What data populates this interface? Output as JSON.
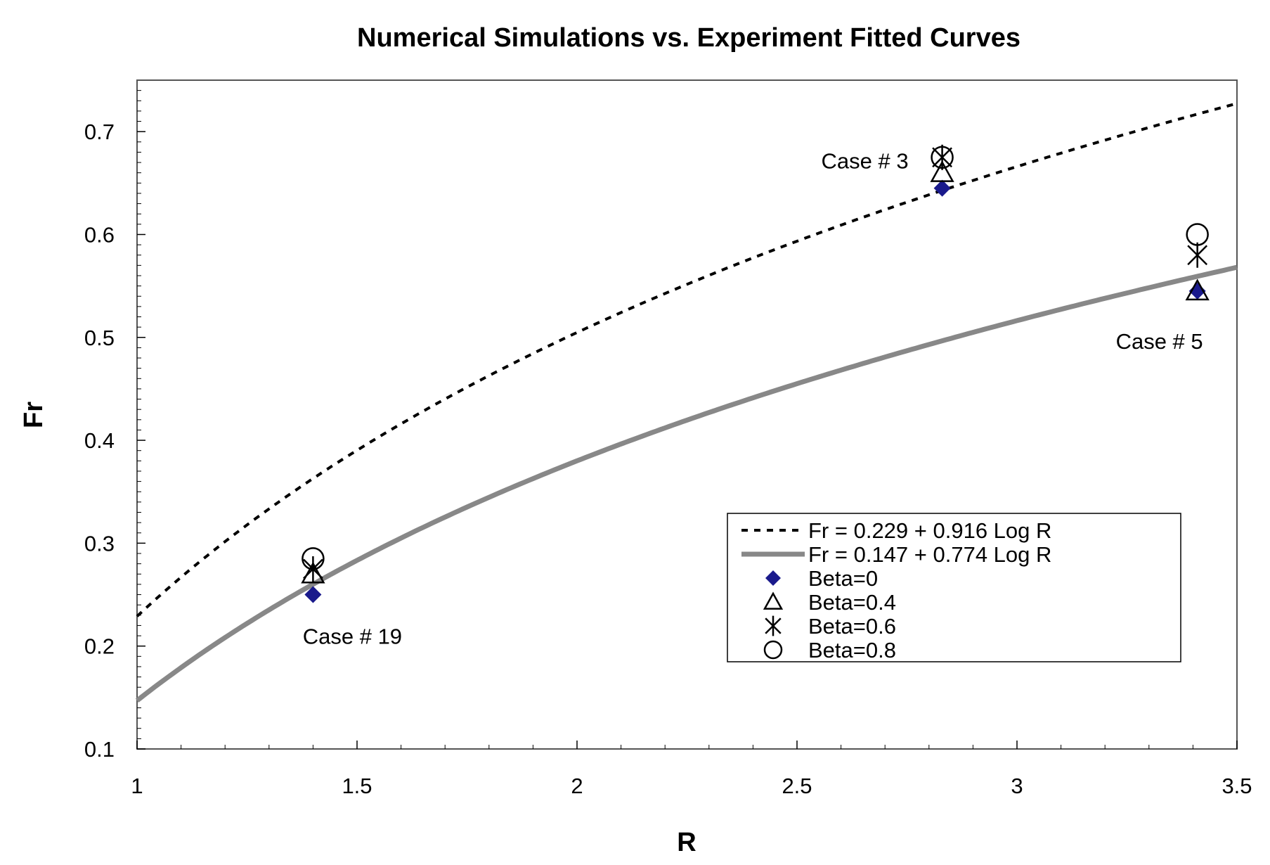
{
  "chart_data": {
    "type": "scatter",
    "title": "Numerical Simulations vs. Experiment Fitted Curves",
    "xlabel": "R",
    "ylabel": "Fr",
    "xlim": [
      1,
      3.5
    ],
    "ylim": [
      0.1,
      0.75
    ],
    "x_ticks": [
      "1",
      "1.5",
      "2",
      "2.5",
      "3",
      "3.5"
    ],
    "y_ticks": [
      "0.1",
      "0.2",
      "0.3",
      "0.4",
      "0.5",
      "0.6",
      "0.7"
    ],
    "grid": false,
    "legend_position": "lower-right",
    "fitted_curves": [
      {
        "name": "Fr = 0.229 + 0.916 Log R",
        "intercept": 0.229,
        "slope": 0.916,
        "style": "dashed",
        "color": "#000000"
      },
      {
        "name": "Fr = 0.147 + 0.774 Log R",
        "intercept": 0.147,
        "slope": 0.774,
        "style": "solid",
        "color": "#888888"
      }
    ],
    "series": [
      {
        "name": "Beta=0",
        "marker": "diamond",
        "color": "#1a1a8c",
        "points": [
          {
            "x": 1.4,
            "y": 0.25
          },
          {
            "x": 2.83,
            "y": 0.645
          },
          {
            "x": 3.41,
            "y": 0.545
          }
        ]
      },
      {
        "name": "Beta=0.4",
        "marker": "triangle",
        "color": "#000000",
        "points": [
          {
            "x": 1.4,
            "y": 0.27
          },
          {
            "x": 2.83,
            "y": 0.66
          },
          {
            "x": 3.41,
            "y": 0.545
          }
        ]
      },
      {
        "name": "Beta=0.6",
        "marker": "asterisk",
        "color": "#000000",
        "points": [
          {
            "x": 1.4,
            "y": 0.275
          },
          {
            "x": 2.83,
            "y": 0.675
          },
          {
            "x": 3.41,
            "y": 0.58
          }
        ]
      },
      {
        "name": "Beta=0.8",
        "marker": "circle",
        "color": "#000000",
        "points": [
          {
            "x": 1.4,
            "y": 0.285
          },
          {
            "x": 2.83,
            "y": 0.675
          },
          {
            "x": 3.41,
            "y": 0.6
          }
        ]
      }
    ],
    "annotations": [
      {
        "text": "Case # 3",
        "x": 2.83,
        "y": 0.675
      },
      {
        "text": "Case # 5",
        "x": 3.41,
        "y": 0.545
      },
      {
        "text": "Case # 19",
        "x": 1.4,
        "y": 0.25
      }
    ]
  }
}
